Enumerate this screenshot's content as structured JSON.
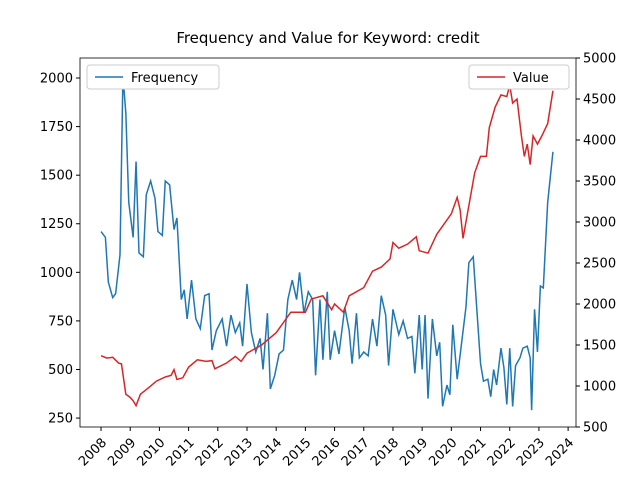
{
  "chart_data": {
    "type": "line",
    "title": "Frequency and Value for Keyword: credit",
    "xlim": [
      2007.28,
      2024.27
    ],
    "xticks": [
      2008,
      2009,
      2010,
      2011,
      2012,
      2013,
      2014,
      2015,
      2016,
      2017,
      2018,
      2019,
      2020,
      2021,
      2022,
      2023,
      2024
    ],
    "ylim": [
      204,
      2103
    ],
    "yticks": [
      250,
      500,
      750,
      1000,
      1250,
      1500,
      1750,
      2000
    ],
    "y2lim": [
      500,
      5000
    ],
    "y2ticks": [
      500,
      1000,
      1500,
      2000,
      2500,
      3000,
      3500,
      4000,
      4500,
      5000
    ],
    "series": [
      {
        "name": "Frequency",
        "color": "#1f77b4",
        "axis": "y",
        "legend": "upper left",
        "x": [
          2008.0,
          2008.15,
          2008.25,
          2008.4,
          2008.5,
          2008.65,
          2008.75,
          2008.85,
          2008.95,
          2009.1,
          2009.2,
          2009.3,
          2009.45,
          2009.55,
          2009.7,
          2009.85,
          2009.95,
          2010.1,
          2010.2,
          2010.35,
          2010.5,
          2010.6,
          2010.75,
          2010.85,
          2010.95,
          2011.1,
          2011.25,
          2011.4,
          2011.55,
          2011.7,
          2011.8,
          2011.95,
          2012.15,
          2012.3,
          2012.45,
          2012.6,
          2012.75,
          2012.85,
          2013.0,
          2013.15,
          2013.3,
          2013.45,
          2013.55,
          2013.7,
          2013.8,
          2013.95,
          2014.1,
          2014.25,
          2014.4,
          2014.55,
          2014.7,
          2014.8,
          2014.95,
          2015.1,
          2015.25,
          2015.35,
          2015.5,
          2015.6,
          2015.75,
          2015.85,
          2016.0,
          2016.15,
          2016.35,
          2016.5,
          2016.6,
          2016.75,
          2016.85,
          2017.0,
          2017.15,
          2017.3,
          2017.45,
          2017.6,
          2017.75,
          2017.85,
          2018.0,
          2018.2,
          2018.35,
          2018.5,
          2018.65,
          2018.75,
          2018.9,
          2019.0,
          2019.1,
          2019.2,
          2019.35,
          2019.5,
          2019.6,
          2019.7,
          2019.85,
          2019.95,
          2020.05,
          2020.2,
          2020.5,
          2020.6,
          2020.75,
          2020.9,
          2021.0,
          2021.1,
          2021.25,
          2021.35,
          2021.45,
          2021.55,
          2021.7,
          2021.8,
          2021.9,
          2022.0,
          2022.1,
          2022.2,
          2022.35,
          2022.45,
          2022.6,
          2022.7,
          2022.75,
          2022.85,
          2022.95,
          2023.05,
          2023.15,
          2023.3,
          2023.48
        ],
        "values": [
          1210,
          1180,
          950,
          870,
          890,
          1090,
          2010,
          1820,
          1360,
          1180,
          1570,
          1100,
          1080,
          1400,
          1470,
          1380,
          1210,
          1190,
          1470,
          1450,
          1220,
          1280,
          860,
          910,
          760,
          960,
          760,
          710,
          880,
          890,
          600,
          700,
          760,
          620,
          780,
          690,
          740,
          620,
          940,
          690,
          590,
          660,
          500,
          790,
          400,
          470,
          580,
          600,
          860,
          960,
          860,
          1000,
          790,
          900,
          860,
          470,
          860,
          550,
          900,
          550,
          700,
          580,
          820,
          700,
          530,
          790,
          560,
          590,
          570,
          760,
          620,
          880,
          780,
          520,
          810,
          680,
          750,
          660,
          670,
          480,
          780,
          500,
          780,
          350,
          760,
          570,
          640,
          310,
          420,
          370,
          730,
          450,
          820,
          1050,
          1080,
          750,
          530,
          440,
          450,
          360,
          500,
          420,
          610,
          510,
          320,
          610,
          310,
          520,
          560,
          610,
          620,
          560,
          290,
          810,
          590,
          930,
          920,
          1360,
          1620
        ]
      },
      {
        "name": "Value",
        "color": "#d62728",
        "axis": "y2",
        "legend": "upper right",
        "x": [
          2008.0,
          2008.2,
          2008.4,
          2008.6,
          2008.7,
          2008.85,
          2009.0,
          2009.1,
          2009.2,
          2009.35,
          2009.6,
          2009.9,
          2010.2,
          2010.4,
          2010.5,
          2010.6,
          2010.8,
          2011.0,
          2011.3,
          2011.6,
          2011.8,
          2011.9,
          2012.3,
          2012.6,
          2012.8,
          2013.0,
          2013.5,
          2014.0,
          2014.5,
          2015.0,
          2015.2,
          2015.6,
          2015.9,
          2016.0,
          2016.3,
          2016.5,
          2017.0,
          2017.3,
          2017.6,
          2017.9,
          2018.0,
          2018.2,
          2018.5,
          2018.8,
          2018.9,
          2019.2,
          2019.5,
          2019.7,
          2020.0,
          2020.2,
          2020.3,
          2020.4,
          2020.6,
          2020.8,
          2021.0,
          2021.2,
          2021.3,
          2021.5,
          2021.7,
          2021.9,
          2022.0,
          2022.1,
          2022.25,
          2022.4,
          2022.5,
          2022.6,
          2022.7,
          2022.8,
          2022.95,
          2023.1,
          2023.3,
          2023.48
        ],
        "values": [
          1370,
          1340,
          1350,
          1280,
          1270,
          900,
          860,
          820,
          760,
          900,
          970,
          1060,
          1110,
          1130,
          1200,
          1080,
          1100,
          1230,
          1320,
          1300,
          1310,
          1210,
          1280,
          1360,
          1300,
          1400,
          1500,
          1650,
          1900,
          1900,
          2060,
          2100,
          1930,
          2000,
          1900,
          2100,
          2200,
          2400,
          2450,
          2550,
          2750,
          2680,
          2730,
          2820,
          2650,
          2620,
          2850,
          2950,
          3100,
          3300,
          3150,
          2800,
          3200,
          3600,
          3800,
          3800,
          4150,
          4400,
          4550,
          4530,
          4670,
          4450,
          4500,
          4050,
          3800,
          3950,
          3700,
          4050,
          3950,
          4050,
          4200,
          4600
        ]
      }
    ]
  }
}
